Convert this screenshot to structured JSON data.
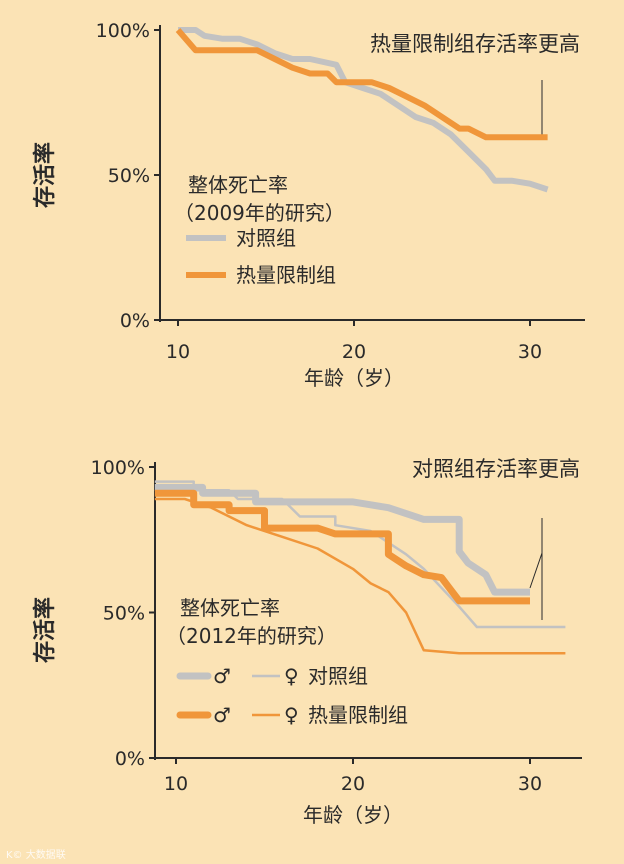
{
  "colors": {
    "background": "#fbe3b5",
    "control": "#c2c2c2",
    "restricted": "#f0963a",
    "axis": "#2a2a2a"
  },
  "watermark": "K© 大数据联",
  "chart_data": [
    {
      "type": "line",
      "ylabel": "存活率",
      "xlabel": "年龄（岁）",
      "annotation": "热量限制组存活率更高",
      "legend_title": [
        "整体死亡率",
        "（2009年的研究）"
      ],
      "legend": [
        "对照组",
        "热量限制组"
      ],
      "xticks": [
        "10",
        "20",
        "30"
      ],
      "yticks": [
        "100%",
        "50%",
        "0%"
      ],
      "xlim": [
        8.8,
        32.5
      ],
      "ylim": [
        0,
        100
      ],
      "series": [
        {
          "name": "对照组",
          "style": "control",
          "points": [
            [
              10,
              100
            ],
            [
              11,
              100
            ],
            [
              11.5,
              98
            ],
            [
              12.5,
              97
            ],
            [
              13.5,
              97
            ],
            [
              14.5,
              95
            ],
            [
              15.5,
              92
            ],
            [
              16.5,
              90
            ],
            [
              17.5,
              90
            ],
            [
              19,
              88
            ],
            [
              19.5,
              82
            ],
            [
              20.5,
              80
            ],
            [
              21.5,
              78
            ],
            [
              22.5,
              74
            ],
            [
              23.5,
              70
            ],
            [
              24.5,
              68
            ],
            [
              25.5,
              64
            ],
            [
              26.5,
              58
            ],
            [
              27.5,
              52
            ],
            [
              28,
              48
            ],
            [
              29,
              48
            ],
            [
              30,
              47
            ],
            [
              31,
              45
            ]
          ]
        },
        {
          "name": "热量限制组",
          "style": "restricted",
          "points": [
            [
              10,
              100
            ],
            [
              11,
              93
            ],
            [
              13.5,
              93
            ],
            [
              14.5,
              93
            ],
            [
              15.5,
              90
            ],
            [
              16.5,
              87
            ],
            [
              17.5,
              85
            ],
            [
              18.5,
              85
            ],
            [
              19,
              82
            ],
            [
              21,
              82
            ],
            [
              22,
              80
            ],
            [
              23,
              77
            ],
            [
              24,
              74
            ],
            [
              25,
              70
            ],
            [
              26,
              66
            ],
            [
              26.5,
              66
            ],
            [
              27.5,
              63
            ],
            [
              28.5,
              63
            ],
            [
              30,
              63
            ],
            [
              31,
              63
            ]
          ]
        }
      ]
    },
    {
      "type": "line",
      "ylabel": "存活率",
      "xlabel": "年龄（岁）",
      "annotation": "对照组存活率更高",
      "legend_title": [
        "整体死亡率",
        "（2012年的研究）"
      ],
      "legend_labels": [
        "对照组",
        "热量限制组"
      ],
      "legend_symbols": [
        "♂",
        "♀"
      ],
      "xticks": [
        "10",
        "20",
        "30"
      ],
      "yticks": [
        "100%",
        "50%",
        "0%"
      ],
      "xlim": [
        8.8,
        32.5
      ],
      "ylim": [
        0,
        100
      ],
      "series": [
        {
          "name": "对照组 ♂",
          "style": "control-male",
          "points": [
            [
              8.8,
              93
            ],
            [
              11.5,
              93
            ],
            [
              11.5,
              91
            ],
            [
              14.5,
              91
            ],
            [
              14.5,
              88
            ],
            [
              17,
              88
            ],
            [
              20,
              88
            ],
            [
              21,
              87
            ],
            [
              22,
              86
            ],
            [
              24,
              82
            ],
            [
              26,
              82
            ],
            [
              26,
              71
            ],
            [
              26.5,
              67
            ],
            [
              27.5,
              63
            ],
            [
              28,
              57
            ],
            [
              30,
              57
            ]
          ]
        },
        {
          "name": "对照组 ♀",
          "style": "control-female",
          "points": [
            [
              8.8,
              95
            ],
            [
              11,
              95
            ],
            [
              11,
              92
            ],
            [
              13,
              92
            ],
            [
              13.5,
              89
            ],
            [
              16,
              89
            ],
            [
              17,
              83
            ],
            [
              19,
              83
            ],
            [
              19,
              80
            ],
            [
              21,
              78
            ],
            [
              23,
              70
            ],
            [
              24,
              65
            ],
            [
              26,
              52
            ],
            [
              27,
              45
            ],
            [
              32,
              45
            ]
          ]
        },
        {
          "name": "热量限制组 ♂",
          "style": "restricted-male",
          "points": [
            [
              8.8,
              91
            ],
            [
              11,
              91
            ],
            [
              11,
              87
            ],
            [
              13,
              87
            ],
            [
              13,
              85
            ],
            [
              15,
              85
            ],
            [
              15,
              79
            ],
            [
              18,
              79
            ],
            [
              19,
              77
            ],
            [
              22,
              77
            ],
            [
              22,
              70
            ],
            [
              23,
              66
            ],
            [
              24,
              63
            ],
            [
              25,
              62
            ],
            [
              25.5,
              58
            ],
            [
              26,
              54
            ],
            [
              30,
              54
            ]
          ]
        },
        {
          "name": "热量限制组 ♀",
          "style": "restricted-female",
          "points": [
            [
              8.8,
              89
            ],
            [
              10.5,
              89
            ],
            [
              12,
              86
            ],
            [
              14,
              80
            ],
            [
              16,
              76
            ],
            [
              18,
              72
            ],
            [
              20,
              65
            ],
            [
              21,
              60
            ],
            [
              22,
              57
            ],
            [
              23,
              50
            ],
            [
              24,
              37
            ],
            [
              26,
              36
            ],
            [
              28,
              36
            ],
            [
              32,
              36
            ]
          ]
        }
      ]
    }
  ]
}
